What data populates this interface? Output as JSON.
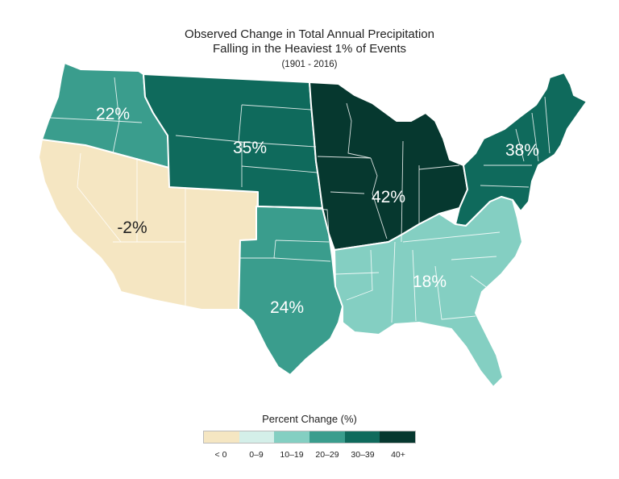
{
  "title": {
    "line1": "Observed Change in Total Annual Precipitation",
    "line2": "Falling in the Heaviest 1% of Events",
    "period": "(1901 - 2016)"
  },
  "legend": {
    "title": "Percent Change (%)",
    "bins": [
      {
        "label": "< 0",
        "color": "#f5e6c2"
      },
      {
        "label": "0–9",
        "color": "#d4efe9"
      },
      {
        "label": "10–19",
        "color": "#84cfc2"
      },
      {
        "label": "20–29",
        "color": "#3a9d8d"
      },
      {
        "label": "30–39",
        "color": "#0f6a5c"
      },
      {
        "label": "40+",
        "color": "#06382f"
      }
    ]
  },
  "regions": [
    {
      "id": "northwest",
      "label": "22%",
      "value": 22,
      "bin": "20–29"
    },
    {
      "id": "southwest",
      "label": "-2%",
      "value": -2,
      "bin": "< 0"
    },
    {
      "id": "great-plains-north",
      "label": "35%",
      "value": 35,
      "bin": "30–39"
    },
    {
      "id": "great-plains-south",
      "label": "24%",
      "value": 24,
      "bin": "20–29"
    },
    {
      "id": "midwest",
      "label": "42%",
      "value": 42,
      "bin": "40+"
    },
    {
      "id": "northeast",
      "label": "38%",
      "value": 38,
      "bin": "30–39"
    },
    {
      "id": "southeast",
      "label": "18%",
      "value": 18,
      "bin": "10–19"
    }
  ]
}
